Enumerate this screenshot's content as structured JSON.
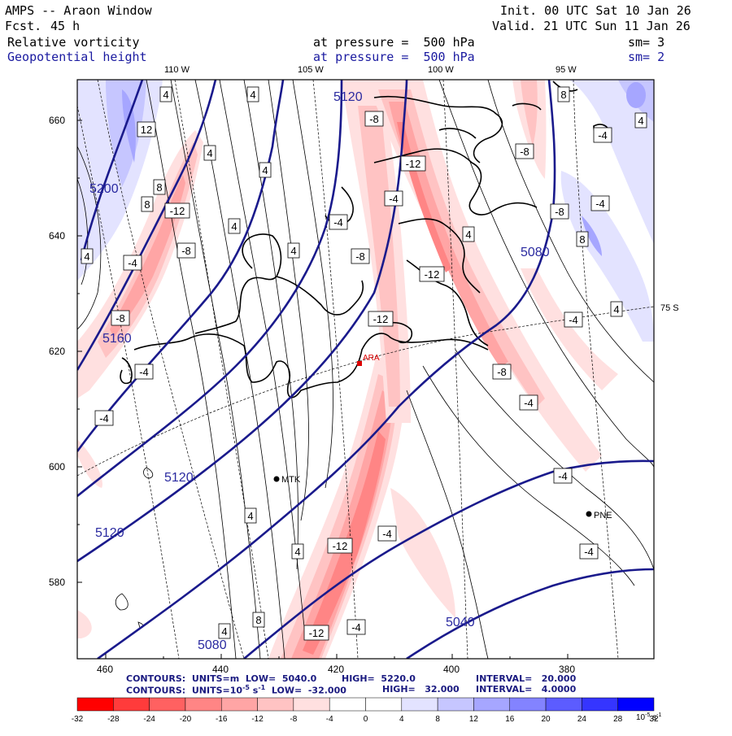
{
  "header": {
    "product": "AMPS -- Araon Window",
    "forecast_label": "Fcst.",
    "forecast_hours": "45 h",
    "init": "Init. 00 UTC Sat 10 Jan 26",
    "valid": "Valid. 21 UTC Sun 11 Jan 26",
    "field1_name": "Relative vorticity",
    "field1_level": "at pressure =  500 hPa",
    "field1_sm": "sm= 3",
    "field2_name": "Geopotential height",
    "field2_level": "at pressure =  500 hPa",
    "field2_sm": "sm= 2"
  },
  "map": {
    "top_lon_labels": [
      "110 W",
      "105 W",
      "100 W",
      "95 W"
    ],
    "right_lat_label": "75 S",
    "y_ticks": [
      "660",
      "640",
      "620",
      "600",
      "580"
    ],
    "x_ticks": [
      "460",
      "440",
      "420",
      "400",
      "380"
    ],
    "stations": [
      {
        "name": "ARA",
        "color": "#dd0000"
      },
      {
        "name": "MTK",
        "color": "#000000"
      },
      {
        "name": "PNE",
        "color": "#000000"
      }
    ],
    "height_labels": [
      "5120",
      "5200",
      "5160",
      "5120",
      "5120",
      "5080",
      "5080",
      "5040"
    ],
    "vort_labels": [
      "4",
      "4",
      "12",
      "4",
      "8",
      "-12",
      "-8",
      "-4",
      "4",
      "4",
      "-8",
      "-12",
      "-8",
      "-4",
      "-4",
      "4",
      "8",
      "-8",
      "4",
      "-4",
      "-12",
      "-8",
      "4",
      "-4",
      "-8",
      "-4",
      "-4",
      "-12",
      "-8",
      "-4",
      "4",
      "8",
      "4",
      "-12",
      "-4",
      "4",
      "-4",
      "4",
      "-4",
      "8",
      "-4",
      "-12",
      "-4",
      "8",
      "4"
    ]
  },
  "footer": {
    "line1_a": "CONTOURS:  UNITS=m  LOW=  5040.0",
    "line1_b": "HIGH=  5220.0",
    "line1_c": "INTERVAL=   20.000",
    "line2_a": "CONTOURS:  UNITS=10",
    "line2_sup": "-5",
    "line2_s": " s",
    "line2_sup2": "-1",
    "line2_b": "  LOW=  -32.000",
    "line2_c": "HIGH=   32.000",
    "line2_d": "INTERVAL=   4.0000"
  },
  "colorbar": {
    "labels": [
      "-32",
      "-28",
      "-24",
      "-20",
      "-16",
      "-12",
      "-8",
      "-4",
      "0",
      "4",
      "8",
      "12",
      "16",
      "20",
      "24",
      "28",
      "32"
    ],
    "unit": "10",
    "unit_sup": "-5",
    "unit_s": " s",
    "unit_sup2": "-1",
    "colors": [
      "#ff0000",
      "#ff3b3b",
      "#ff6161",
      "#ff8585",
      "#ffa5a5",
      "#ffc3c3",
      "#ffe0e0",
      "#ffffff",
      "#ffffff",
      "#e3e3ff",
      "#c6c6ff",
      "#a6a6ff",
      "#8383ff",
      "#5c5cff",
      "#3535ff",
      "#0000ff"
    ]
  }
}
